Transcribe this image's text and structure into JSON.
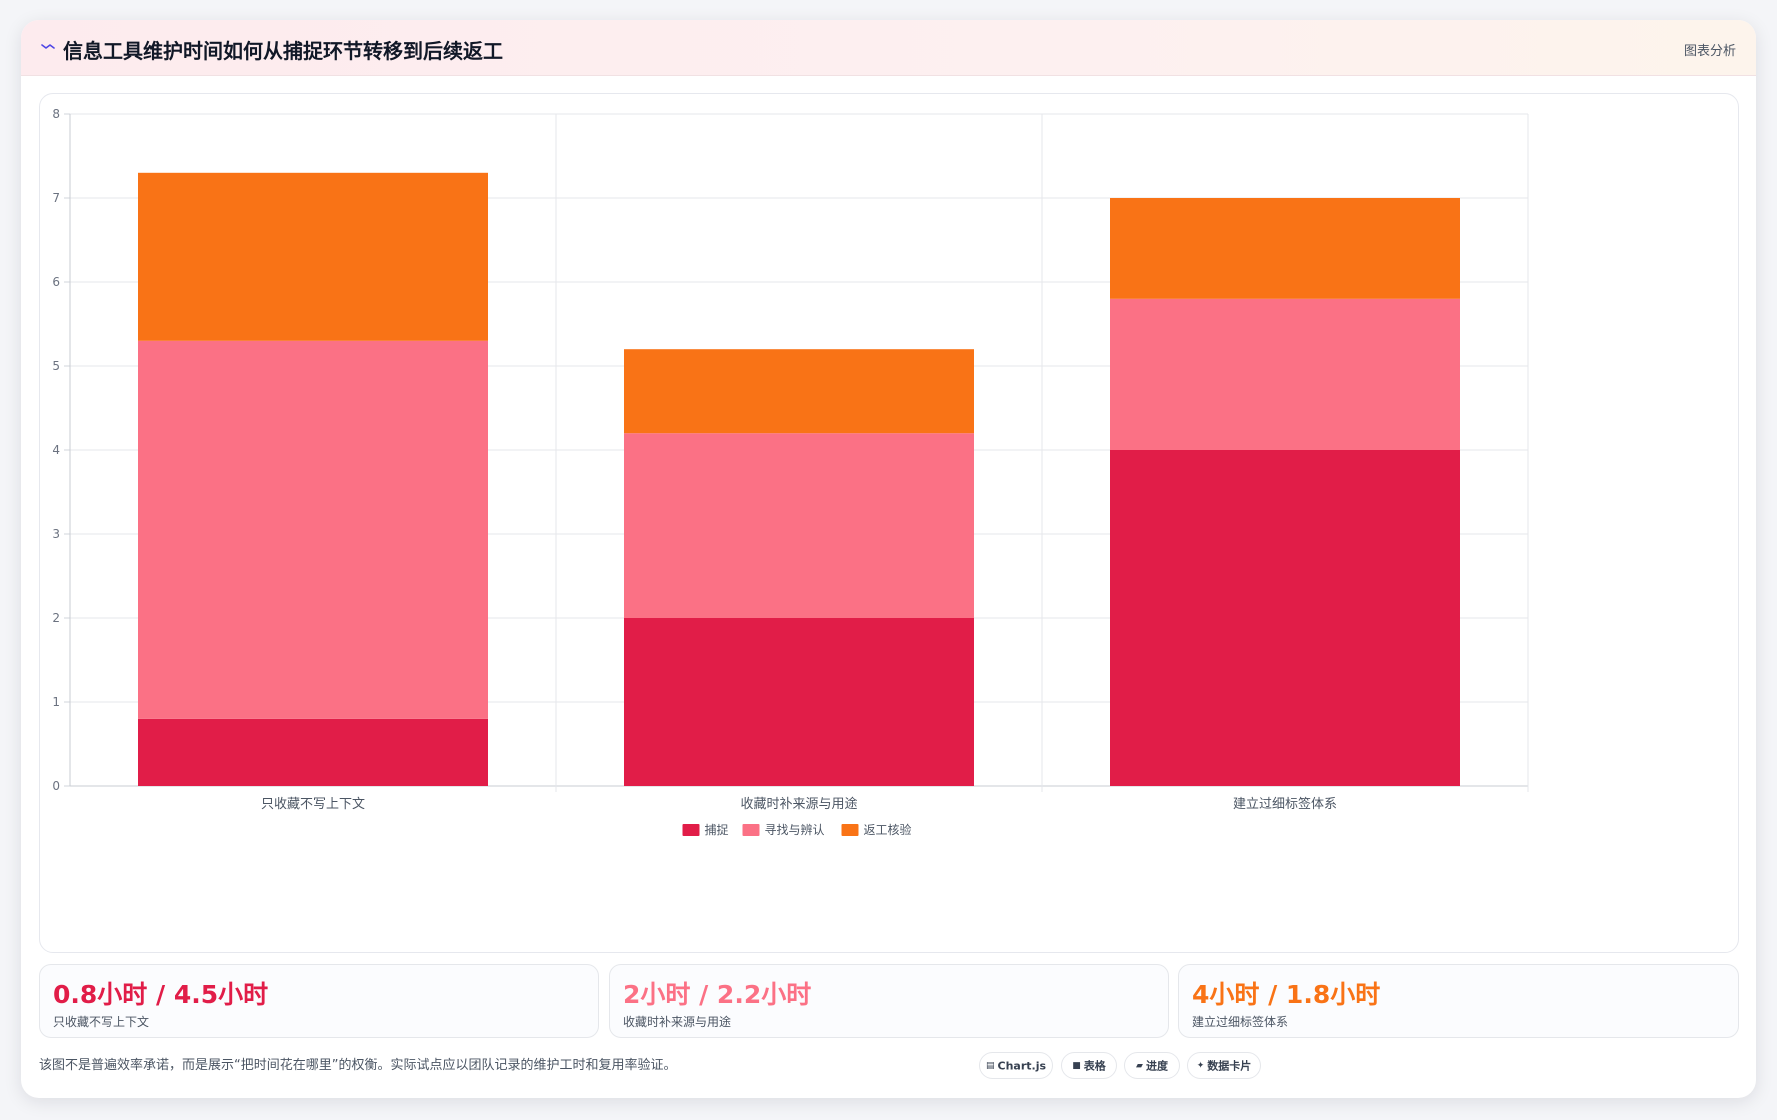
{
  "card": {
    "title": "信息工具维护时间如何从捕捉环节转移到后续返工",
    "action": "图表分析"
  },
  "chart_data": {
    "type": "bar",
    "stacked": true,
    "categories": [
      "只收藏不写上下文",
      "收藏时补来源与用途",
      "建立过细标签体系"
    ],
    "series": [
      {
        "name": "捕捉",
        "values": [
          0.8,
          2,
          4
        ],
        "color": "#e11d48"
      },
      {
        "name": "寻找与辨认",
        "values": [
          4.5,
          2.2,
          1.8
        ],
        "color": "#fb7185"
      },
      {
        "name": "返工核验",
        "values": [
          2,
          1,
          1.2
        ],
        "color": "#f97316"
      }
    ],
    "yticks": [
      "0",
      "1",
      "2",
      "3",
      "4",
      "5",
      "6",
      "7",
      "8"
    ],
    "ylim": [
      0,
      8
    ],
    "grid": true,
    "legend": "bottom"
  },
  "stats": [
    {
      "value": "0.8小时 / 4.5小时",
      "label": "只收藏不写上下文",
      "color": "#e11d48"
    },
    {
      "value": "2小时 / 2.2小时",
      "label": "收藏时补来源与用途",
      "color": "#fb7185"
    },
    {
      "value": "4小时 / 1.8小时",
      "label": "建立过细标签体系",
      "color": "#f97316"
    }
  ],
  "footnote": "该图不是普遍效率承诺，而是展示“把时间花在哪里”的权衡。实际试点应以团队记录的维护工时和复用率验证。",
  "pills": [
    {
      "icon": "▤",
      "label": "Chart.js"
    },
    {
      "icon": "■",
      "label": "表格"
    },
    {
      "icon": "▰",
      "label": "进度"
    },
    {
      "icon": "✦",
      "label": "数据卡片"
    }
  ]
}
